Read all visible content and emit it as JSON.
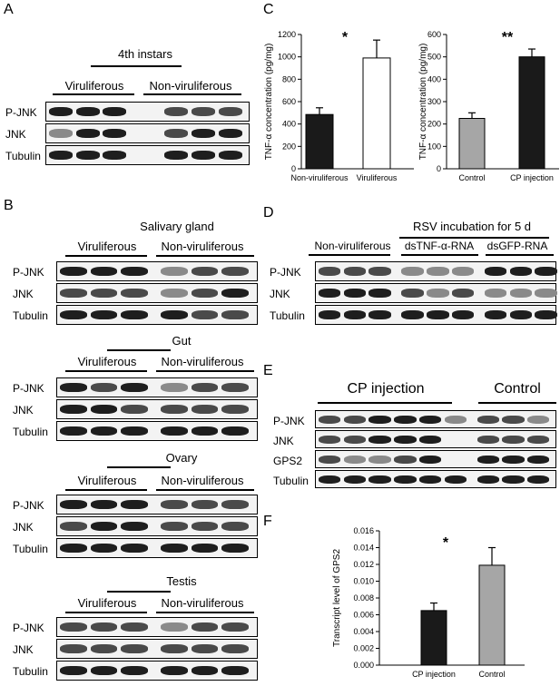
{
  "panels": {
    "A": {
      "letter": "A",
      "title": "4th instars",
      "groups": [
        "Viruliferous",
        "Non-viruliferous"
      ],
      "rows": [
        "P-JNK",
        "JNK",
        "Tubulin"
      ]
    },
    "B": {
      "letter": "B",
      "tissues": [
        {
          "title": "Salivary gland",
          "groups": [
            "Viruliferous",
            "Non-viruliferous"
          ],
          "rows": [
            "P-JNK",
            "JNK",
            "Tubulin"
          ]
        },
        {
          "title": "Gut",
          "groups": [
            "Viruliferous",
            "Non-viruliferous"
          ],
          "rows": [
            "P-JNK",
            "JNK",
            "Tubulin"
          ]
        },
        {
          "title": "Ovary",
          "groups": [
            "Viruliferous",
            "Non-viruliferous"
          ],
          "rows": [
            "P-JNK",
            "JNK",
            "Tubulin"
          ]
        },
        {
          "title": "Testis",
          "groups": [
            "Viruliferous",
            "Non-viruliferous"
          ],
          "rows": [
            "P-JNK",
            "JNK",
            "Tubulin"
          ]
        }
      ]
    },
    "C": {
      "letter": "C"
    },
    "D": {
      "letter": "D",
      "title": "RSV incubation for 5 d",
      "groups": [
        "Non-viruliferous",
        "dsTNF-α-RNA",
        "dsGFP-RNA"
      ],
      "rows": [
        "P-JNK",
        "JNK",
        "Tubulin"
      ]
    },
    "E": {
      "letter": "E",
      "groups": [
        "CP injection",
        "Control"
      ],
      "rows": [
        "P-JNK",
        "JNK",
        "GPS2",
        "Tubulin"
      ]
    },
    "F": {
      "letter": "F"
    }
  },
  "chart_data": [
    {
      "id": "C-left",
      "type": "bar",
      "categories": [
        "Non-viruliferous",
        "Viruliferous"
      ],
      "values": [
        485,
        990
      ],
      "errors": [
        60,
        160
      ],
      "colors": [
        "#1a1a1a",
        "#ffffff"
      ],
      "ylabel": "TNF-α concentration (pg/mg)",
      "ylim": [
        0,
        1200
      ],
      "yticks": [
        "0",
        "200",
        "400",
        "600",
        "800",
        "1000",
        "1200"
      ],
      "significance": "*"
    },
    {
      "id": "C-right",
      "type": "bar",
      "categories": [
        "Control",
        "CP injection"
      ],
      "values": [
        225,
        500
      ],
      "errors": [
        25,
        35
      ],
      "colors": [
        "#a6a6a6",
        "#1a1a1a"
      ],
      "ylabel": "TNF-α concentration (pg/mg)",
      "ylim": [
        0,
        600
      ],
      "yticks": [
        "0",
        "100",
        "200",
        "300",
        "400",
        "500",
        "600"
      ],
      "significance": "**"
    },
    {
      "id": "F",
      "type": "bar",
      "categories": [
        "CP injection",
        "Control"
      ],
      "values": [
        0.0065,
        0.0119
      ],
      "errors": [
        0.0009,
        0.0021
      ],
      "colors": [
        "#1a1a1a",
        "#a6a6a6"
      ],
      "ylabel": "Transcript level of GPS2",
      "ylim": [
        0,
        0.016
      ],
      "yticks": [
        "0.000",
        "0.002",
        "0.004",
        "0.006",
        "0.008",
        "0.010",
        "0.012",
        "0.014",
        "0.016"
      ],
      "significance": "*"
    }
  ]
}
